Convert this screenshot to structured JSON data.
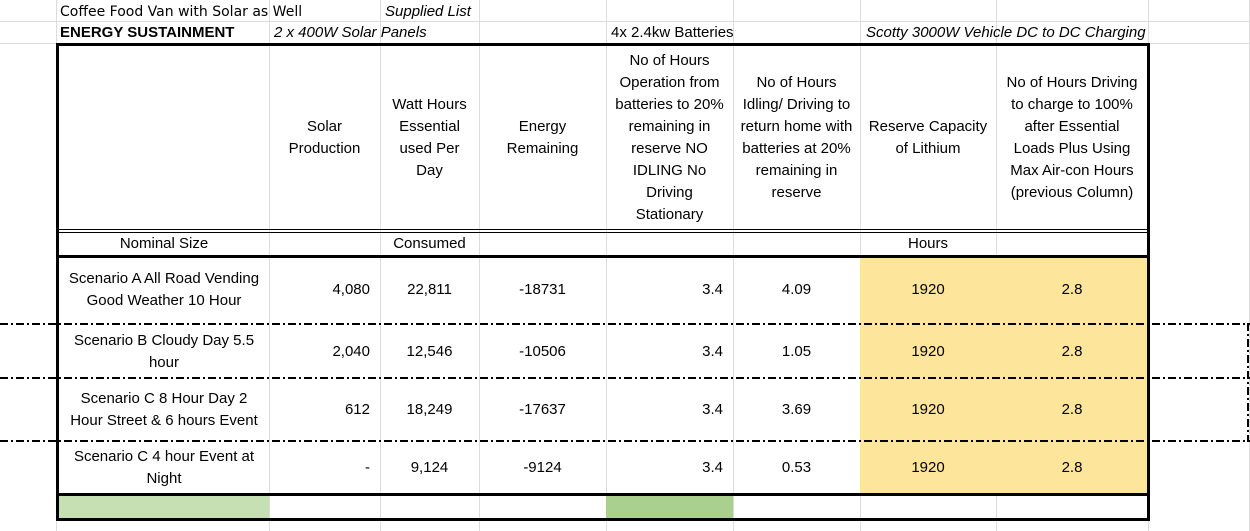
{
  "top_rows": {
    "title": "Coffee Food Van with Solar as Well",
    "supplied": "Supplied List",
    "energy_label": "ENERGY SUSTAINMENT",
    "solar_panels": "2 x 400W Solar Panels",
    "batteries": "4x 2.4kw Batteries",
    "charging": "Scotty 3000W Vehicle DC to DC Charging"
  },
  "headers": {
    "solar": "Solar\nProduction",
    "watt_hours": "Watt Hours\nEssential\nused Per\nDay",
    "energy": "Energy\nRemaining",
    "hours_batteries": "No of Hours\nOperation from\nbatteries to 20%\nremaining in\nreserve NO\nIDLING No\nDriving\nStationary",
    "hours_idling": "No of Hours\nIdling/ Driving  to\nreturn home with\nbatteries at 20%\nremaining in\nreserve",
    "reserve": "Reserve Capacity\nof Lithium",
    "driving": "No of Hours Driving\nto charge to 100%\nafter  Essential\nLoads Plus Using\nMax Air-con Hours\n(previous Column)"
  },
  "subheaders": {
    "nominal": "Nominal Size",
    "consumed": "Consumed",
    "hours": "Hours"
  },
  "rows": [
    {
      "scenario": "Scenario A All Road Vending\nGood Weather 10 Hour",
      "solar": "4,080",
      "watt": "22,811",
      "energy": "-18731",
      "hb": "3.4",
      "hi": "4.09",
      "reserve": "1920",
      "driving": "2.8"
    },
    {
      "scenario": "Scenario B  Cloudy  Day 5.5\nhour",
      "solar": "2,040",
      "watt": "12,546",
      "energy": "-10506",
      "hb": "3.4",
      "hi": "1.05",
      "reserve": "1920",
      "driving": "2.8"
    },
    {
      "scenario": "Scenario C 8 Hour Day 2\nHour Street & 6 hours Event",
      "solar": "612",
      "watt": "18,249",
      "energy": "-17637",
      "hb": "3.4",
      "hi": "3.69",
      "reserve": "1920",
      "driving": "2.8"
    },
    {
      "scenario": "Scenario C 4 hour Event at\nNight",
      "solar": "-",
      "watt": "9,124",
      "energy": "-9124",
      "hb": "3.4",
      "hi": "0.53",
      "reserve": "1920",
      "driving": "2.8"
    }
  ],
  "colors": {
    "highlight_yellow": "#fde59b",
    "green_light": "#c6e0b4",
    "green_mid": "#a9d08e"
  }
}
